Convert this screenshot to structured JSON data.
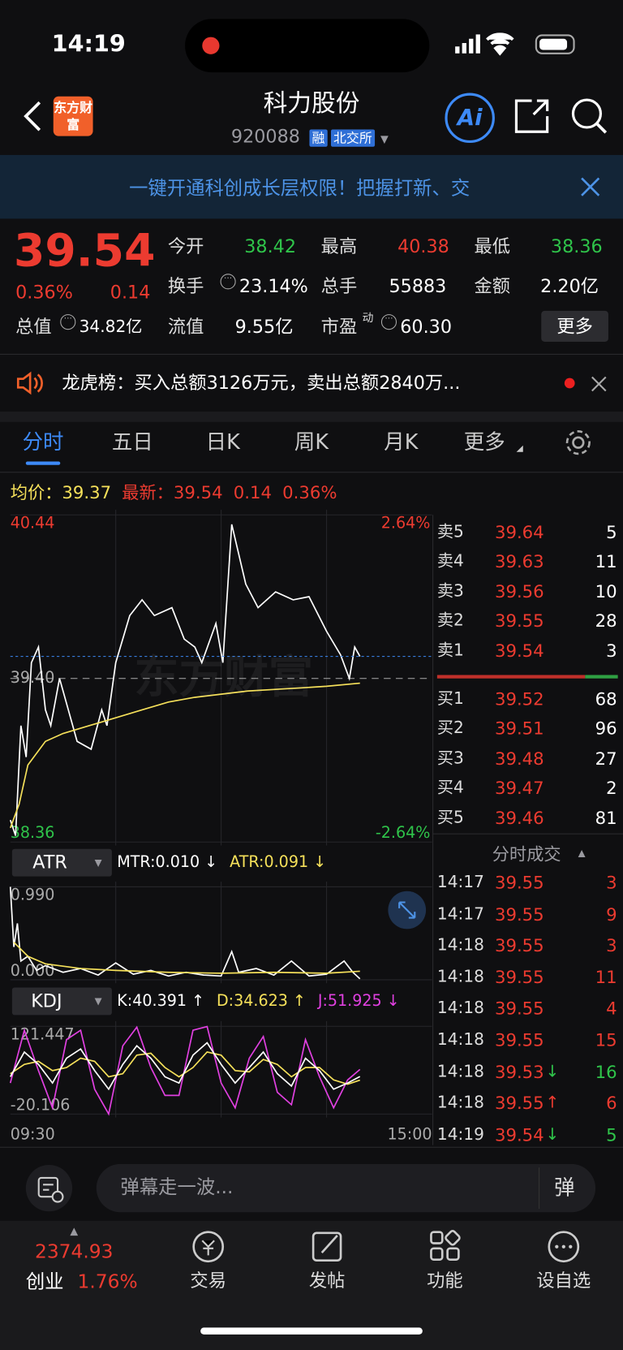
{
  "status_bar": {
    "time": "14:19"
  },
  "header": {
    "title": "科力股份",
    "code": "920088",
    "badges": [
      "融",
      "北交所"
    ],
    "logo": "东方财富",
    "ai": "Ai"
  },
  "banner": {
    "text": "一键开通科创成长层权限！把握打新、交"
  },
  "quote": {
    "price": "39.54",
    "change_pct": "0.36%",
    "change": "0.14",
    "fields": [
      {
        "label": "今开",
        "value": "38.42",
        "color": "#2fc44a"
      },
      {
        "label": "最高",
        "value": "40.38",
        "color": "#ec3b30"
      },
      {
        "label": "最低",
        "value": "38.36",
        "color": "#2fc44a"
      },
      {
        "label": "换手",
        "value": "23.14%",
        "color": "#ffffff"
      },
      {
        "label": "总手",
        "value": "55883",
        "color": "#ffffff"
      },
      {
        "label": "金额",
        "value": "2.20亿",
        "color": "#ffffff"
      },
      {
        "label": "总值",
        "value": "34.82亿",
        "color": "#ffffff"
      },
      {
        "label": "流值",
        "value": "9.55亿",
        "color": "#ffffff"
      },
      {
        "label": "市盈",
        "sup": "动",
        "value": "60.30",
        "color": "#ffffff"
      }
    ],
    "more": "更多"
  },
  "notice": {
    "text": "龙虎榜：买入总额3126万元，卖出总额2840万..."
  },
  "tabs": [
    "分时",
    "五日",
    "日K",
    "周K",
    "月K",
    "更多"
  ],
  "intraday": {
    "avg_label": "均价：",
    "avg": "39.37",
    "latest_label": "最新：",
    "latest": "39.54",
    "change": "0.14",
    "change_pct": "0.36%",
    "watermark": "东方财富",
    "chart": {
      "type": "line",
      "xlim": [
        0,
        240
      ],
      "xticks": [
        {
          "value": 0,
          "label": "09:30"
        },
        {
          "value": 240,
          "label": "15:00"
        }
      ],
      "ylim": [
        38.36,
        40.44
      ],
      "yticks": [
        38.36,
        {
          "value": 39.4,
          "label": "39.40"
        },
        40.44
      ],
      "y2lim": [
        -2.64,
        2.64
      ],
      "y2ticks": [
        {
          "value": 2.64,
          "label": "2.64%"
        },
        {
          "value": -2.64,
          "label": "-2.64%"
        }
      ],
      "series": [
        {
          "color": "#ffffff",
          "x": [
            0,
            3,
            6,
            9,
            12,
            16,
            20,
            23,
            28,
            33,
            38,
            46,
            52,
            55,
            60,
            68,
            75,
            82,
            92,
            99,
            105,
            109,
            117,
            121,
            126,
            134,
            141,
            151,
            161,
            170,
            180,
            188,
            193,
            196,
            199
          ],
          "values": [
            38.5,
            38.4,
            39.1,
            38.9,
            39.5,
            39.6,
            39.2,
            39.1,
            39.4,
            39.2,
            39.0,
            38.95,
            39.2,
            39.1,
            39.5,
            39.8,
            39.9,
            39.8,
            39.85,
            39.65,
            39.6,
            39.5,
            39.75,
            39.5,
            40.38,
            40.0,
            39.85,
            39.95,
            39.9,
            39.92,
            39.7,
            39.55,
            39.4,
            39.6,
            39.54
          ]
        },
        {
          "color": "#f5e05a",
          "x": [
            0,
            5,
            10,
            20,
            30,
            45,
            60,
            75,
            90,
            105,
            120,
            135,
            150,
            165,
            180,
            199
          ],
          "values": [
            38.45,
            38.6,
            38.85,
            39.0,
            39.05,
            39.1,
            39.15,
            39.2,
            39.25,
            39.28,
            39.3,
            39.32,
            39.33,
            39.34,
            39.35,
            39.37
          ]
        }
      ]
    }
  },
  "atr": {
    "name": "ATR",
    "legend": [
      {
        "text": "MTR:0.010 ↓",
        "color": "#ffffff"
      },
      {
        "text": "ATR:0.091 ↓",
        "color": "#f5e05a"
      }
    ],
    "chart": {
      "type": "line",
      "xlim": [
        0,
        240
      ],
      "ylim": [
        0,
        0.99
      ],
      "yticks": [
        {
          "value": 0.99,
          "label": "0.990"
        },
        {
          "value": 0,
          "label": "0.000"
        }
      ],
      "series": [
        {
          "color": "#ffffff",
          "x": [
            0,
            2,
            4,
            6,
            10,
            15,
            20,
            30,
            40,
            50,
            60,
            70,
            80,
            90,
            100,
            110,
            120,
            126,
            130,
            140,
            150,
            160,
            170,
            180,
            190,
            195,
            199
          ],
          "values": [
            0.99,
            0.35,
            0.6,
            0.2,
            0.25,
            0.1,
            0.15,
            0.08,
            0.12,
            0.05,
            0.18,
            0.06,
            0.1,
            0.04,
            0.08,
            0.05,
            0.04,
            0.3,
            0.08,
            0.12,
            0.05,
            0.2,
            0.04,
            0.06,
            0.2,
            0.08,
            0.01
          ]
        },
        {
          "color": "#f5e05a",
          "x": [
            2,
            10,
            20,
            40,
            60,
            90,
            120,
            150,
            180,
            199
          ],
          "values": [
            0.4,
            0.25,
            0.17,
            0.12,
            0.1,
            0.08,
            0.07,
            0.08,
            0.07,
            0.091
          ]
        }
      ]
    }
  },
  "kdj": {
    "name": "KDJ",
    "legend": [
      {
        "text": "K:40.391 ↑",
        "color": "#ffffff"
      },
      {
        "text": "D:34.623 ↑",
        "color": "#f5e05a"
      },
      {
        "text": "J:51.925 ↓",
        "color": "#e040e0"
      }
    ],
    "chart": {
      "type": "line",
      "xlim": [
        0,
        240
      ],
      "ylim": [
        -20.106,
        121.447
      ],
      "yticks": [
        121.447,
        -20.106
      ],
      "series": [
        {
          "color": "#e040e0",
          "x": [
            0,
            8,
            16,
            24,
            32,
            40,
            48,
            56,
            64,
            72,
            80,
            88,
            96,
            104,
            112,
            120,
            128,
            136,
            144,
            152,
            160,
            168,
            176,
            184,
            192,
            199
          ],
          "values": [
            30,
            115,
            50,
            -10,
            100,
            115,
            20,
            -20,
            90,
            120,
            55,
            10,
            10,
            115,
            121,
            30,
            -10,
            70,
            105,
            15,
            -5,
            100,
            40,
            -10,
            35,
            51.925
          ]
        },
        {
          "color": "#f5e05a",
          "x": [
            0,
            8,
            16,
            24,
            32,
            40,
            48,
            56,
            64,
            72,
            80,
            88,
            96,
            104,
            112,
            120,
            128,
            136,
            144,
            152,
            160,
            168,
            176,
            184,
            192,
            199
          ],
          "values": [
            45,
            60,
            65,
            50,
            55,
            70,
            65,
            40,
            45,
            75,
            78,
            55,
            40,
            55,
            80,
            75,
            50,
            48,
            68,
            60,
            40,
            55,
            55,
            35,
            28,
            34.623
          ]
        },
        {
          "color": "#ffffff",
          "x": [
            0,
            8,
            16,
            24,
            32,
            40,
            48,
            56,
            64,
            72,
            80,
            88,
            96,
            104,
            112,
            120,
            128,
            136,
            144,
            152,
            160,
            168,
            176,
            184,
            192,
            199
          ],
          "values": [
            40,
            80,
            60,
            30,
            70,
            85,
            50,
            20,
            60,
            90,
            70,
            40,
            30,
            75,
            95,
            60,
            30,
            55,
            80,
            45,
            25,
            70,
            50,
            20,
            30,
            40.391
          ]
        }
      ]
    }
  },
  "order_book": {
    "sell": [
      [
        "卖5",
        "39.64",
        "5"
      ],
      [
        "卖4",
        "39.63",
        "11"
      ],
      [
        "卖3",
        "39.56",
        "10"
      ],
      [
        "卖2",
        "39.55",
        "28"
      ],
      [
        "卖1",
        "39.54",
        "3"
      ]
    ],
    "buy": [
      [
        "买1",
        "39.52",
        "68"
      ],
      [
        "买2",
        "39.51",
        "96"
      ],
      [
        "买3",
        "39.48",
        "27"
      ],
      [
        "买4",
        "39.47",
        "2"
      ],
      [
        "买5",
        "39.46",
        "81"
      ]
    ]
  },
  "trades": {
    "title": "分时成交",
    "rows": [
      {
        "time": "14:17",
        "price": "39.55",
        "volume": "3",
        "color": "#ec3b30"
      },
      {
        "time": "14:17",
        "price": "39.55",
        "volume": "9",
        "color": "#ec3b30"
      },
      {
        "time": "14:18",
        "price": "39.55",
        "volume": "3",
        "color": "#ec3b30"
      },
      {
        "time": "14:18",
        "price": "39.55",
        "volume": "11",
        "color": "#ec3b30"
      },
      {
        "time": "14:18",
        "price": "39.55",
        "volume": "4",
        "color": "#ec3b30"
      },
      {
        "time": "14:18",
        "price": "39.55",
        "volume": "15",
        "color": "#ec3b30"
      },
      {
        "time": "14:18",
        "price": "39.53",
        "arrow": "↓",
        "volume": "16",
        "color": "#2fc44a"
      },
      {
        "time": "14:18",
        "price": "39.55",
        "arrow": "↑",
        "volume": "6",
        "color": "#ec3b30"
      },
      {
        "time": "14:19",
        "price": "39.54",
        "arrow": "↓",
        "volume": "5",
        "color": "#2fc44a"
      }
    ]
  },
  "comment_bar": {
    "placeholder": "弹幕走一波...",
    "button": "弹"
  },
  "bottom_nav": {
    "index_value": "2374.93",
    "index_name": "创业",
    "index_change": "1.76%",
    "items": [
      "交易",
      "发帖",
      "功能",
      "设自选"
    ]
  }
}
